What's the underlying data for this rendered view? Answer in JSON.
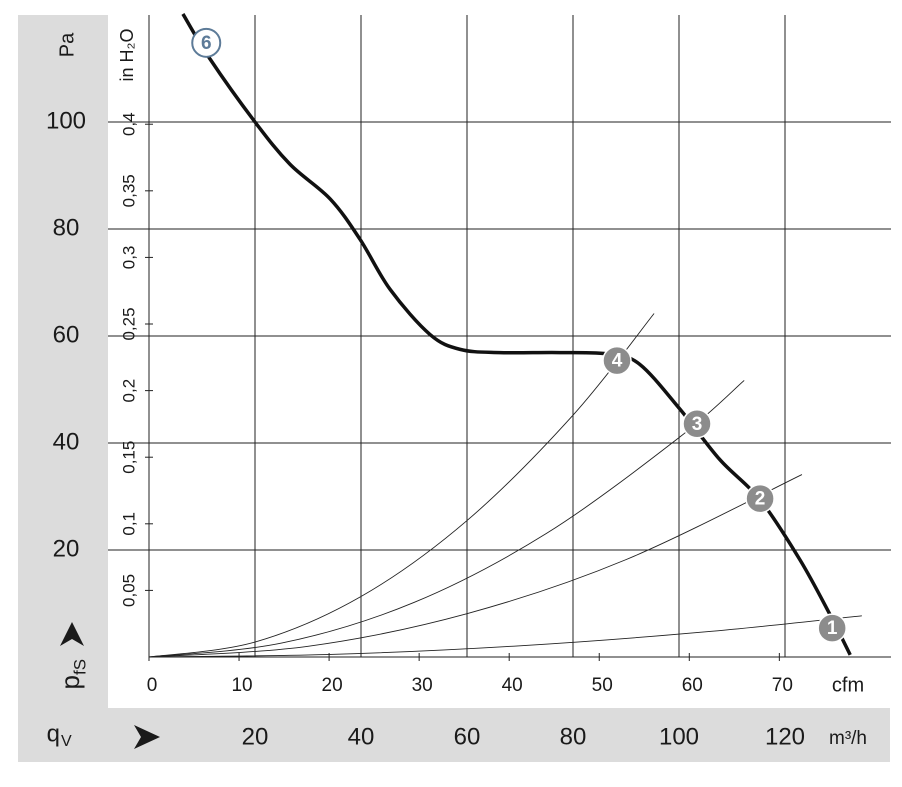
{
  "chart_data": {
    "type": "line",
    "y_unit": "Pa",
    "y2_label": "in H₂O",
    "x_label": "m³/h",
    "x2_label": "cfm",
    "x_symbol": "q",
    "x_symbol_sub": "V",
    "y_symbol": "p",
    "y_symbol_sub": "fS",
    "xlim": [
      0,
      140
    ],
    "xticks": [
      20,
      40,
      60,
      80,
      100,
      120
    ],
    "x2lim": [
      0,
      82.4
    ],
    "x2ticks": [
      0,
      10,
      20,
      30,
      40,
      50,
      60,
      70
    ],
    "ylim": [
      0,
      120
    ],
    "yticks": [
      20,
      40,
      60,
      80,
      100
    ],
    "y2lim": [
      0,
      0.482
    ],
    "y2ticks": [
      {
        "value": 0.05,
        "label": "0,05"
      },
      {
        "value": 0.1,
        "label": "0,1"
      },
      {
        "value": 0.15,
        "label": "0,15"
      },
      {
        "value": 0.2,
        "label": "0,2"
      },
      {
        "value": 0.25,
        "label": "0,25"
      },
      {
        "value": 0.3,
        "label": "0,3"
      },
      {
        "value": 0.35,
        "label": "0,35"
      },
      {
        "value": 0.4,
        "label": "0,4"
      }
    ],
    "grid": true,
    "series": [
      {
        "color": "#111111",
        "width": 3.5,
        "x": [
          6.4,
          11.5,
          20,
          26.6,
          34.2,
          39.8,
          45.5,
          53,
          58.7,
          66.2,
          77.5,
          87,
          92.6,
          100.2,
          107.7,
          115.3,
          122.8,
          128.5,
          132.3
        ],
        "values": [
          120.2,
          111.8,
          100,
          92.1,
          85.6,
          78.1,
          68.7,
          60.3,
          57.5,
          56.9,
          56.9,
          56.6,
          54.7,
          46.3,
          36.9,
          29.4,
          18.2,
          7.9,
          0.4
        ]
      },
      {
        "color": "#222222",
        "width": 0.9,
        "x": [
          0,
          35,
          70,
          105,
          134.5
        ],
        "values": [
          0,
          0.5,
          2.1,
          4.7,
          7.7
        ]
      },
      {
        "color": "#222222",
        "width": 0.9,
        "x": [
          0,
          30,
          60,
          90,
          123.2
        ],
        "values": [
          0,
          2,
          8.1,
          18.2,
          34.1
        ]
      },
      {
        "color": "#222222",
        "width": 0.9,
        "x": [
          0,
          25,
          50,
          75,
          100,
          112.3
        ],
        "values": [
          0,
          2.6,
          10.2,
          23.1,
          41,
          51.7
        ]
      },
      {
        "color": "#222222",
        "width": 0.9,
        "x": [
          0,
          20,
          40,
          60,
          80,
          95.3
        ],
        "values": [
          0,
          2.8,
          11.3,
          25.5,
          45.2,
          64.2
        ]
      }
    ],
    "points": [
      {
        "label": "1",
        "x": 128.9,
        "y": 5.4,
        "color": "#8c8c8c"
      },
      {
        "label": "2",
        "x": 115.3,
        "y": 29.6,
        "color": "#8c8c8c"
      },
      {
        "label": "3",
        "x": 103.4,
        "y": 43.6,
        "color": "#8c8c8c"
      },
      {
        "label": "4",
        "x": 88.3,
        "y": 55.4,
        "color": "#8c8c8c"
      },
      {
        "label": "6",
        "x": 10.8,
        "y": 114.8,
        "color": "#5d7b98",
        "outline": true
      }
    ]
  }
}
